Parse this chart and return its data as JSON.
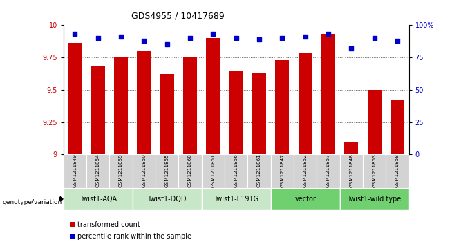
{
  "title": "GDS4955 / 10417689",
  "samples": [
    "GSM1211849",
    "GSM1211854",
    "GSM1211859",
    "GSM1211850",
    "GSM1211855",
    "GSM1211860",
    "GSM1211851",
    "GSM1211856",
    "GSM1211861",
    "GSM1211847",
    "GSM1211852",
    "GSM1211857",
    "GSM1211848",
    "GSM1211853",
    "GSM1211858"
  ],
  "bar_values": [
    9.86,
    9.68,
    9.75,
    9.8,
    9.62,
    9.75,
    9.9,
    9.65,
    9.63,
    9.73,
    9.79,
    9.93,
    9.1,
    9.5,
    9.42
  ],
  "percentile_values": [
    93,
    90,
    91,
    88,
    85,
    90,
    93,
    90,
    89,
    90,
    91,
    93,
    82,
    90,
    88
  ],
  "ylim_left": [
    9.0,
    10.0
  ],
  "ylim_right": [
    0,
    100
  ],
  "bar_color": "#cc0000",
  "percentile_color": "#0000cc",
  "yticks_left": [
    9.0,
    9.25,
    9.5,
    9.75,
    10.0
  ],
  "ytick_labels_left": [
    "9",
    "9.25",
    "9.5",
    "9.75",
    "10"
  ],
  "yticks_right": [
    0,
    25,
    50,
    75,
    100
  ],
  "ytick_labels_right": [
    "0",
    "25",
    "50",
    "75",
    "100%"
  ],
  "group_defs": [
    {
      "label": "Twist1-AQA",
      "start": 0,
      "end": 2,
      "color": "#c8e6c8"
    },
    {
      "label": "Twist1-DQD",
      "start": 3,
      "end": 5,
      "color": "#c8e6c8"
    },
    {
      "label": "Twist1-F191G",
      "start": 6,
      "end": 8,
      "color": "#c8e6c8"
    },
    {
      "label": "vector",
      "start": 9,
      "end": 11,
      "color": "#70d070"
    },
    {
      "label": "Twist1-wild type",
      "start": 12,
      "end": 14,
      "color": "#70d070"
    }
  ],
  "sample_label_bg": "#d3d3d3",
  "legend_items": [
    {
      "label": "transformed count",
      "color": "#cc0000"
    },
    {
      "label": "percentile rank within the sample",
      "color": "#0000cc"
    }
  ],
  "genotype_label": "genotype/variation"
}
